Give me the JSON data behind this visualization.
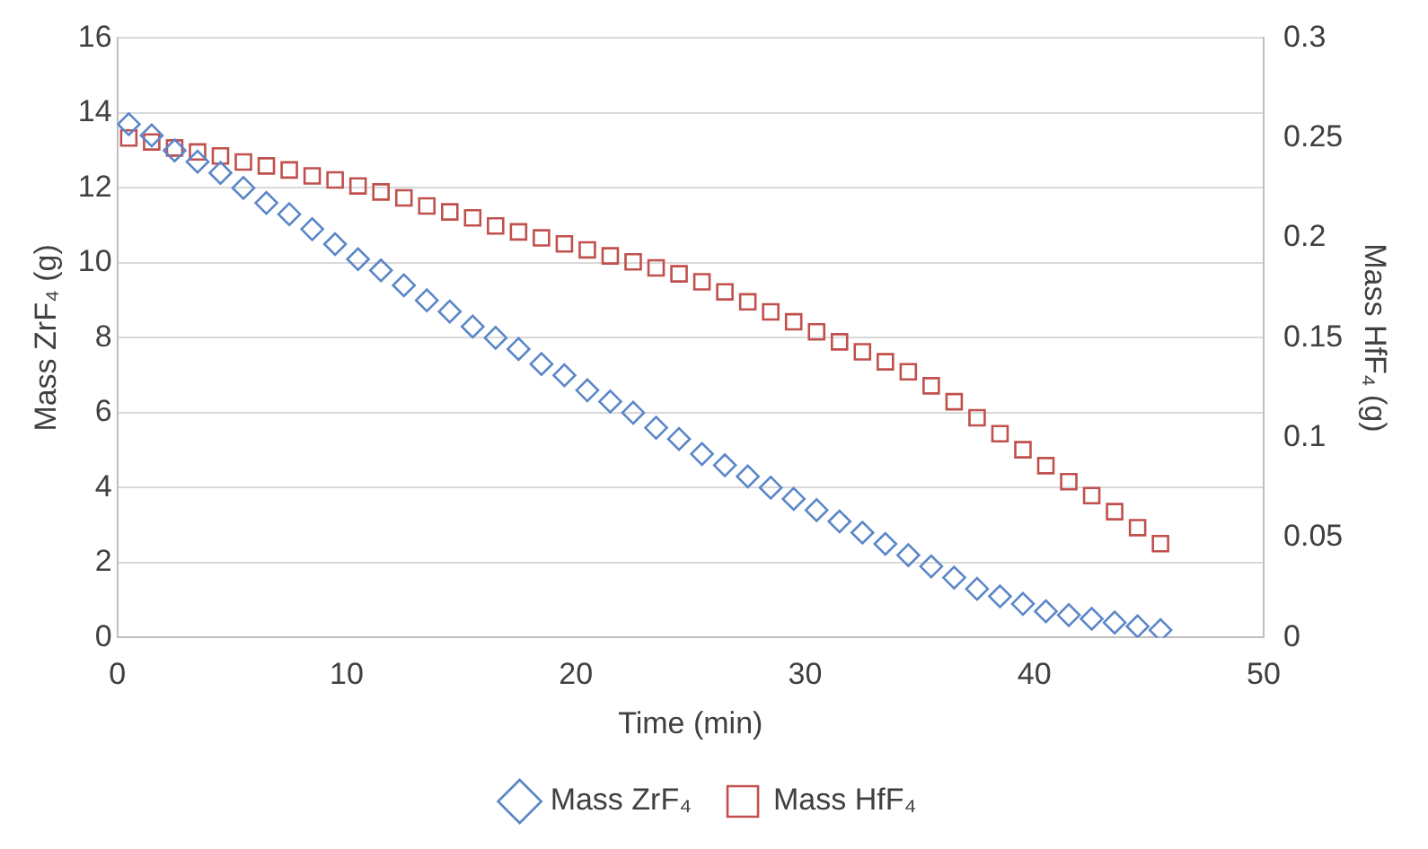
{
  "chart_data": {
    "type": "scatter",
    "xlabel": "Time (min)",
    "ylabel": "Mass ZrF₄ (g)",
    "y2label": "Mass HfF₄ (g)",
    "x": [
      0.5,
      1.5,
      2.5,
      3.5,
      4.5,
      5.5,
      6.5,
      7.5,
      8.5,
      9.5,
      10.5,
      11.5,
      12.5,
      13.5,
      14.5,
      15.5,
      16.5,
      17.5,
      18.5,
      19.5,
      20.5,
      21.5,
      22.5,
      23.5,
      24.5,
      25.5,
      26.5,
      27.5,
      28.5,
      29.5,
      30.5,
      31.5,
      32.5,
      33.5,
      34.5,
      35.5,
      36.5,
      37.5,
      38.5,
      39.5,
      40.5,
      41.5,
      42.5,
      43.5,
      44.5,
      45.5
    ],
    "series": [
      {
        "name": "Mass ZrF₄",
        "marker": "diamond",
        "color": "#5b86c8",
        "values": [
          13.7,
          13.4,
          13.0,
          12.7,
          12.4,
          12.0,
          11.6,
          11.3,
          10.9,
          10.5,
          10.1,
          9.8,
          9.4,
          9.0,
          8.7,
          8.3,
          8.0,
          7.7,
          7.3,
          7.0,
          6.6,
          6.3,
          6.0,
          5.6,
          5.3,
          4.9,
          4.6,
          4.3,
          4.0,
          3.7,
          3.4,
          3.1,
          2.8,
          2.5,
          2.2,
          1.9,
          1.6,
          1.3,
          1.1,
          0.9,
          0.7,
          0.6,
          0.5,
          0.4,
          0.3,
          0.2
        ]
      },
      {
        "name": "Mass HfF₄",
        "marker": "square",
        "color": "#c0504d",
        "axis": "y2",
        "values": [
          0.25,
          0.248,
          0.245,
          0.243,
          0.241,
          0.238,
          0.236,
          0.234,
          0.231,
          0.229,
          0.226,
          0.223,
          0.22,
          0.216,
          0.213,
          0.21,
          0.206,
          0.203,
          0.2,
          0.197,
          0.194,
          0.191,
          0.188,
          0.185,
          0.182,
          0.178,
          0.173,
          0.168,
          0.163,
          0.158,
          0.153,
          0.148,
          0.143,
          0.138,
          0.133,
          0.126,
          0.118,
          0.11,
          0.102,
          0.094,
          0.086,
          0.078,
          0.071,
          0.063,
          0.055,
          0.047
        ]
      }
    ],
    "xlim": [
      0,
      50
    ],
    "xticks": [
      0,
      10,
      20,
      30,
      40,
      50
    ],
    "ylim": [
      0,
      16
    ],
    "yticks": [
      0,
      2,
      4,
      6,
      8,
      10,
      12,
      14,
      16
    ],
    "y2lim": [
      0,
      0.3
    ],
    "y2ticks": [
      0,
      0.05,
      0.1,
      0.15,
      0.2,
      0.25,
      0.3
    ],
    "grid": "y",
    "legend": "bottom"
  }
}
